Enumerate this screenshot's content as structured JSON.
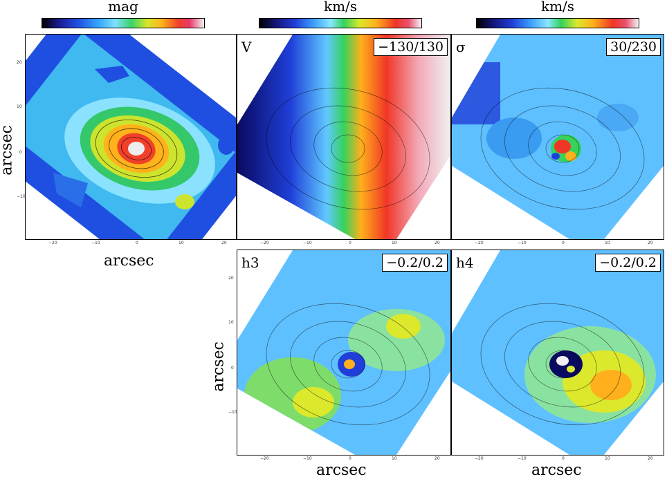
{
  "colorbars": [
    {
      "title": "mag",
      "scale": "mag"
    },
    {
      "title": "km/s",
      "scale": "kin"
    },
    {
      "title": "km/s",
      "scale": "kin"
    }
  ],
  "panels": [
    {
      "id": "mag",
      "label": "",
      "range": "",
      "map": "intensity"
    },
    {
      "id": "V",
      "label": "V",
      "range": "−130/130",
      "map": "velocity"
    },
    {
      "id": "sigma",
      "label": "σ",
      "range": "30/230",
      "map": "dispersion"
    },
    {
      "id": "h3",
      "label": "h3",
      "range": "−0.2/0.2",
      "map": "h3"
    },
    {
      "id": "h4",
      "label": "h4",
      "range": "−0.2/0.2",
      "map": "h4"
    }
  ],
  "axes": {
    "x_label": "arcsec",
    "y_label": "arcsec",
    "x_ticks": [
      "−20",
      "−10",
      "0",
      "10",
      "20"
    ],
    "y_ticks": [
      "20",
      "10",
      "0",
      "−10",
      "−20"
    ]
  }
}
